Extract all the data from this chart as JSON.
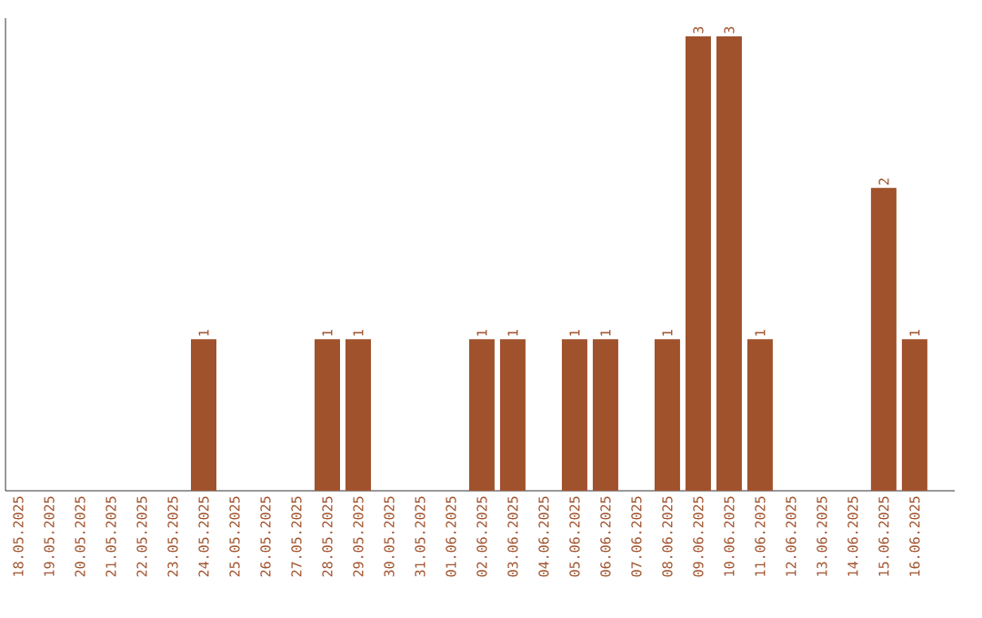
{
  "chart_data": {
    "type": "bar",
    "categories": [
      "18.05.2025",
      "19.05.2025",
      "20.05.2025",
      "21.05.2025",
      "22.05.2025",
      "23.05.2025",
      "24.05.2025",
      "25.05.2025",
      "26.05.2025",
      "27.05.2025",
      "28.05.2025",
      "29.05.2025",
      "30.05.2025",
      "31.05.2025",
      "01.06.2025",
      "02.06.2025",
      "03.06.2025",
      "04.06.2025",
      "05.06.2025",
      "06.06.2025",
      "07.06.2025",
      "08.06.2025",
      "09.06.2025",
      "10.06.2025",
      "11.06.2025",
      "12.06.2025",
      "13.06.2025",
      "14.06.2025",
      "15.06.2025",
      "16.06.2025"
    ],
    "values": [
      0,
      0,
      0,
      0,
      0,
      0,
      1,
      0,
      0,
      0,
      1,
      1,
      0,
      0,
      0,
      1,
      1,
      0,
      1,
      1,
      0,
      1,
      3,
      3,
      1,
      0,
      0,
      0,
      2,
      1
    ],
    "value_labels": [
      null,
      null,
      null,
      null,
      null,
      null,
      "1",
      null,
      null,
      null,
      "1",
      "1",
      null,
      null,
      null,
      "1",
      "1",
      null,
      "1",
      "1",
      null,
      "1",
      "3",
      "3",
      "1",
      null,
      null,
      null,
      "2",
      "1"
    ],
    "color": "#a0522d",
    "ylim": [
      0,
      3.12
    ],
    "tick_labels": "x"
  }
}
